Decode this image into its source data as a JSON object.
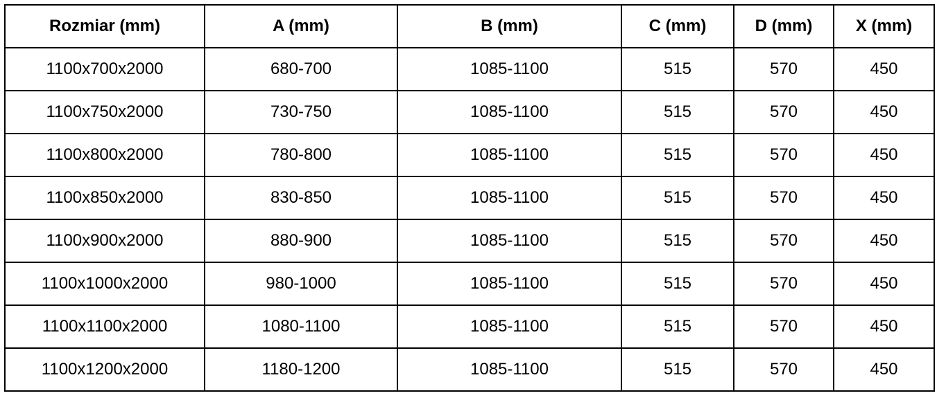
{
  "table": {
    "headers": [
      "Rozmiar (mm)",
      "A (mm)",
      "B (mm)",
      "C (mm)",
      "D (mm)",
      "X (mm)"
    ],
    "rows": [
      [
        "1100x700x2000",
        "680-700",
        "1085-1100",
        "515",
        "570",
        "450"
      ],
      [
        "1100x750x2000",
        "730-750",
        "1085-1100",
        "515",
        "570",
        "450"
      ],
      [
        "1100x800x2000",
        "780-800",
        "1085-1100",
        "515",
        "570",
        "450"
      ],
      [
        "1100x850x2000",
        "830-850",
        "1085-1100",
        "515",
        "570",
        "450"
      ],
      [
        "1100x900x2000",
        "880-900",
        "1085-1100",
        "515",
        "570",
        "450"
      ],
      [
        "1100x1000x2000",
        "980-1000",
        "1085-1100",
        "515",
        "570",
        "450"
      ],
      [
        "1100x1100x2000",
        "1080-1100",
        "1085-1100",
        "515",
        "570",
        "450"
      ],
      [
        "1100x1200x2000",
        "1180-1200",
        "1085-1100",
        "515",
        "570",
        "450"
      ]
    ]
  }
}
